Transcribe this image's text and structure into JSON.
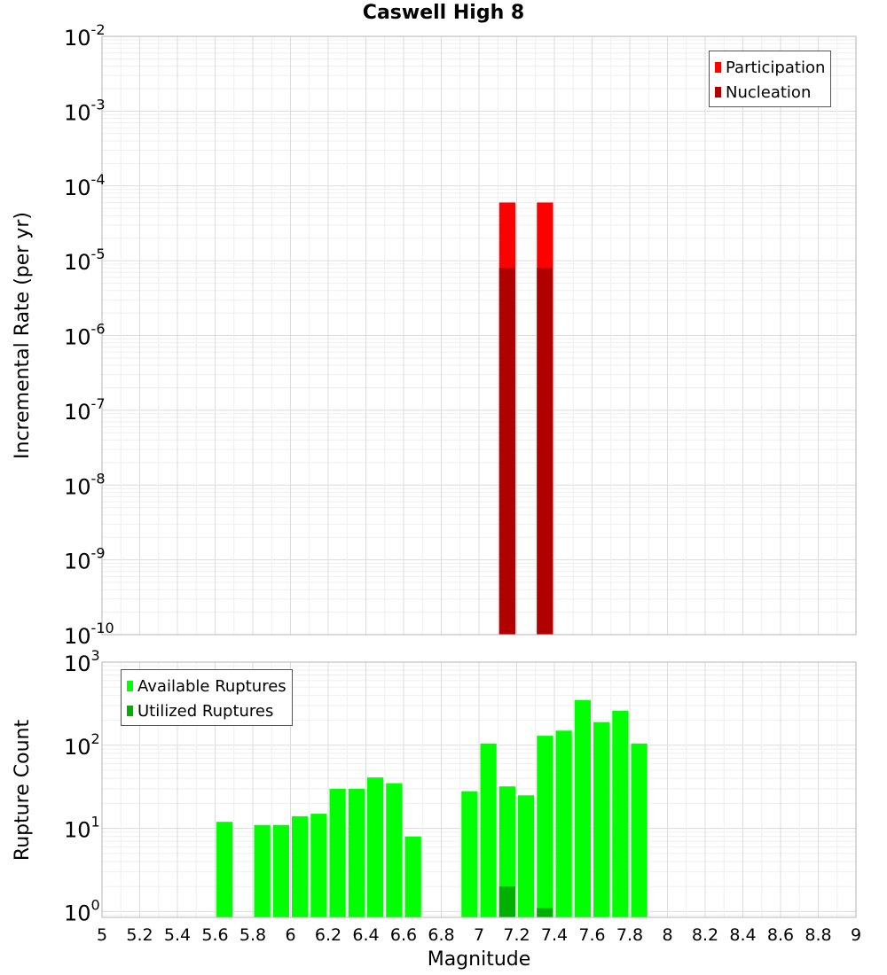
{
  "chart_data": {
    "title": "Caswell High 8",
    "xlabel": "Magnitude",
    "x_range": [
      5,
      9
    ],
    "x_ticks": [
      "5",
      "5.2",
      "5.4",
      "5.6",
      "5.8",
      "6",
      "6.2",
      "6.4",
      "6.6",
      "6.8",
      "7",
      "7.2",
      "7.4",
      "7.6",
      "7.8",
      "8",
      "8.2",
      "8.4",
      "8.6",
      "8.8",
      "9"
    ],
    "bin_width": 0.1,
    "panels": [
      {
        "id": "rate",
        "type": "bar",
        "ylabel": "Incremental Rate (per yr)",
        "yscale": "log",
        "ylim_exp": [
          -10,
          -2
        ],
        "y_tick_labels": [
          {
            "base": "10",
            "exp": "-10"
          },
          {
            "base": "10",
            "exp": "-9"
          },
          {
            "base": "10",
            "exp": "-8"
          },
          {
            "base": "10",
            "exp": "-7"
          },
          {
            "base": "10",
            "exp": "-6"
          },
          {
            "base": "10",
            "exp": "-5"
          },
          {
            "base": "10",
            "exp": "-4"
          },
          {
            "base": "10",
            "exp": "-3"
          },
          {
            "base": "10",
            "exp": "-2"
          }
        ],
        "legend": {
          "position": "top-right",
          "entries": [
            "Participation",
            "Nucleation"
          ]
        },
        "series": [
          {
            "name": "Participation",
            "color": "#ff0000",
            "x": [
              7.15,
              7.35
            ],
            "values": [
              6e-05,
              6e-05
            ]
          },
          {
            "name": "Nucleation",
            "color": "#b00000",
            "x": [
              7.15,
              7.35
            ],
            "values": [
              8e-06,
              8e-06
            ]
          }
        ]
      },
      {
        "id": "count",
        "type": "bar",
        "ylabel": "Rupture Count",
        "yscale": "log",
        "ylim_exp": [
          -0.07,
          3
        ],
        "y_tick_labels": [
          {
            "base": "10",
            "exp": "0"
          },
          {
            "base": "10",
            "exp": "1"
          },
          {
            "base": "10",
            "exp": "2"
          },
          {
            "base": "10",
            "exp": "3"
          }
        ],
        "legend": {
          "position": "top-left",
          "entries": [
            "Available Ruptures",
            "Utilized Ruptures"
          ]
        },
        "series": [
          {
            "name": "Available Ruptures",
            "color": "#00ff00",
            "x": [
              5.65,
              5.85,
              5.95,
              6.05,
              6.15,
              6.25,
              6.35,
              6.45,
              6.55,
              6.65,
              6.95,
              7.05,
              7.15,
              7.25,
              7.35,
              7.45,
              7.55,
              7.65,
              7.75,
              7.85
            ],
            "values": [
              12,
              11,
              11,
              14,
              15,
              30,
              30,
              41,
              35,
              8,
              28,
              105,
              32,
              25,
              130,
              150,
              350,
              190,
              260,
              105
            ]
          },
          {
            "name": "Utilized Ruptures",
            "color": "#00b000",
            "x": [
              7.15,
              7.35
            ],
            "values": [
              2,
              1.1
            ]
          }
        ]
      }
    ]
  }
}
